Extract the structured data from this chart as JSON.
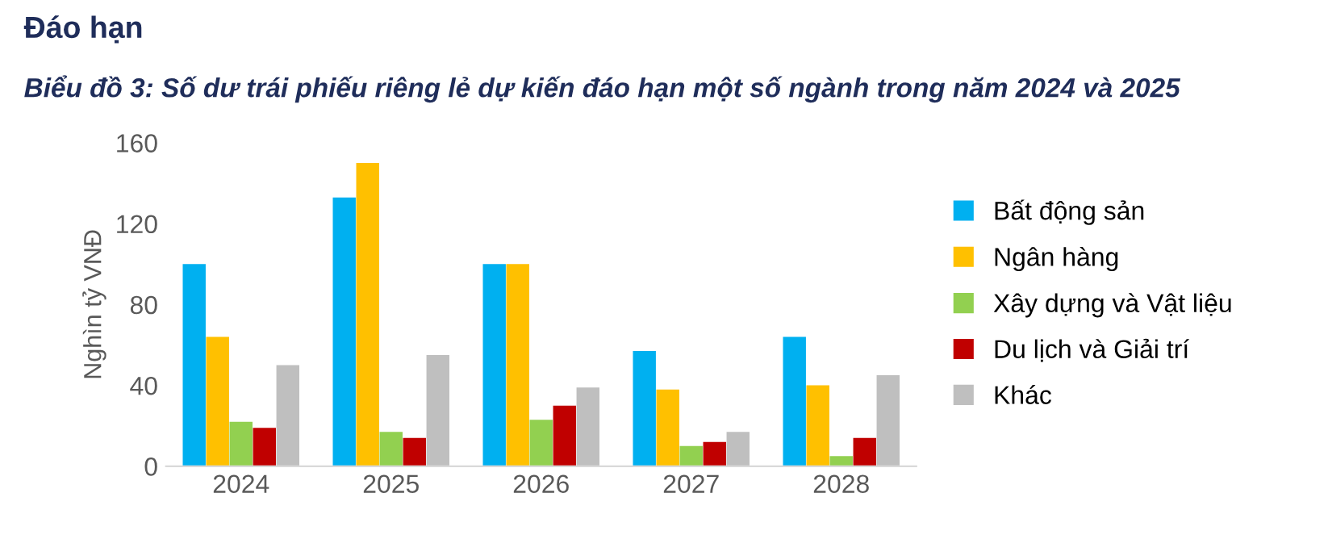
{
  "chart_data": {
    "type": "bar",
    "title": "Đáo hạn",
    "subtitle": "Biểu đồ 3: Số dư trái phiếu riêng lẻ dự kiến đáo hạn một số ngành trong năm 2024 và 2025",
    "ylabel": "Nghìn tỷ VNĐ",
    "categories": [
      "2024",
      "2025",
      "2026",
      "2027",
      "2028"
    ],
    "series": [
      {
        "name": "Bất động sản",
        "color": "#00b0f0",
        "values": [
          100,
          133,
          100,
          57,
          64
        ]
      },
      {
        "name": "Ngân hàng",
        "color": "#ffc000",
        "values": [
          64,
          150,
          100,
          38,
          40
        ]
      },
      {
        "name": "Xây dựng và Vật liệu",
        "color": "#92d050",
        "values": [
          22,
          17,
          23,
          10,
          5
        ]
      },
      {
        "name": "Du lịch và Giải trí",
        "color": "#c00000",
        "values": [
          19,
          14,
          30,
          12,
          14
        ]
      },
      {
        "name": "Khác",
        "color": "#bfbfbf",
        "values": [
          50,
          55,
          39,
          17,
          45
        ]
      }
    ],
    "ylim": [
      0,
      160
    ],
    "yticks": [
      0,
      40,
      80,
      120,
      160
    ],
    "grid": false,
    "legend": "right"
  }
}
